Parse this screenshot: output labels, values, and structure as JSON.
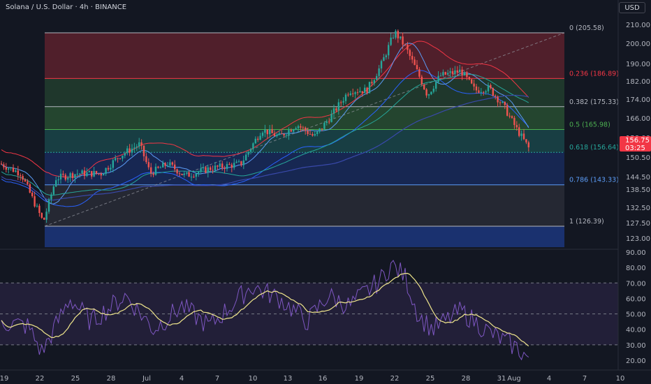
{
  "header": {
    "symbol_title": "Solana / U.S. Dollar · 4h · BINANCE",
    "currency_button": "USD"
  },
  "price_axis": {
    "ticks": [
      "210.00",
      "200.00",
      "190.00",
      "182.00",
      "174.00",
      "166.00",
      "158.00",
      "150.50",
      "144.50",
      "138.50",
      "132.50",
      "127.50",
      "123.00"
    ]
  },
  "rsi_axis": {
    "ticks": [
      "90.00",
      "80.00",
      "70.00",
      "60.00",
      "50.00",
      "40.00",
      "30.00",
      "20.00"
    ]
  },
  "time_axis": {
    "labels": [
      "19",
      "22",
      "25",
      "28",
      "Jul",
      "4",
      "7",
      "10",
      "13",
      "16",
      "19",
      "22",
      "25",
      "28",
      "31",
      "Aug",
      "4",
      "7",
      "10"
    ]
  },
  "last_price": {
    "price": "156.75",
    "countdown": "03:25"
  },
  "fib_levels": [
    {
      "level": 0,
      "price": 205.58,
      "label": "0 (205.58)",
      "color": "#b2b5be"
    },
    {
      "level": 0.236,
      "price": 186.89,
      "label": "0.236 (186.89)",
      "color": "#f23645"
    },
    {
      "level": 0.382,
      "price": 175.33,
      "label": "0.382 (175.33)",
      "color": "#b2b5be"
    },
    {
      "level": 0.5,
      "price": 165.98,
      "label": "0.5 (165.98)",
      "color": "#4caf50"
    },
    {
      "level": 0.618,
      "price": 156.64,
      "label": "0.618 (156.64)",
      "color": "#26a69a"
    },
    {
      "level": 0.786,
      "price": 143.33,
      "label": "0.786 (143.33)",
      "color": "#5b9cf6"
    },
    {
      "level": 1,
      "price": 126.39,
      "label": "1 (126.39)",
      "color": "#b2b5be"
    }
  ],
  "colors": {
    "up": "#26a69a",
    "down": "#ef5350",
    "rsi": "#7e57c2",
    "rsi_ma": "#f0e68c",
    "background": "#131722"
  }
}
